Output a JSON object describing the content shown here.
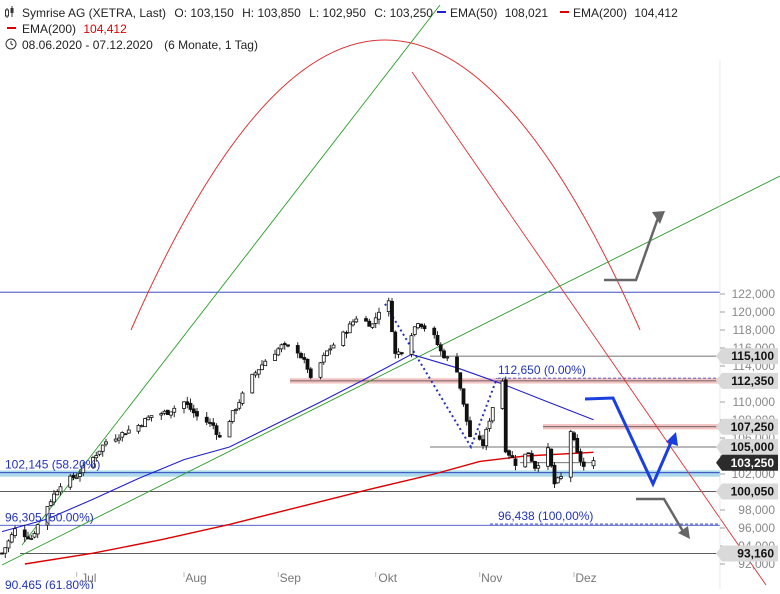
{
  "header": {
    "line1": {
      "symbol_icon": "candlestick-icon",
      "title": "Symrise AG (XETRA, Last)",
      "open": "O: 103,150",
      "high": "H: 103,850",
      "low": "L: 102,950",
      "close": "C: 103,250",
      "ema50_label": "EMA(50)",
      "ema50_value": "108,021",
      "ema200_label": "EMA(200)",
      "ema200_value": "104,412"
    },
    "line2": {
      "ema200_label": "EMA(200)",
      "ema200_value": "104,412"
    },
    "line3": {
      "clock_icon": "clock-icon",
      "range": "08.06.2020 - 07.12.2020",
      "period": "(6 Monate, 1 Tag)"
    }
  },
  "colors": {
    "ema50": "#2020cc",
    "ema200": "#dd0000",
    "trend_green": "#2a9d2a",
    "arc_red": "#dd3333",
    "fib_blue": "#2233bb",
    "support_band": "#9fd3e6",
    "resistance_band": "#f2b8b8",
    "candle": "#111111",
    "grid_line": "#444444",
    "arrow_blue": "#1a3fe0",
    "arrow_gray": "#666666"
  },
  "chart_data": {
    "type": "candlestick",
    "title": "Symrise AG (XETRA, Last)",
    "x_range": [
      "2020-06-08",
      "2020-12-07"
    ],
    "ylim": [
      92000,
      123000
    ],
    "y_ticks": [
      "92,000",
      "94,000",
      "96,000",
      "98,000",
      "100,000",
      "102,000",
      "104,000",
      "106,000",
      "108,000",
      "110,000",
      "112,000",
      "114,000",
      "116,000",
      "118,000",
      "120,000",
      "122,000"
    ],
    "x_ticks": [
      "Jul",
      "Aug",
      "Sep",
      "Okt",
      "Nov",
      "Dez"
    ],
    "last": {
      "open": 103150,
      "high": 103850,
      "low": 102950,
      "close": 103250
    },
    "ema50_last": 108021,
    "ema200_last": 104412,
    "price_path": [
      [
        "2020-06-08",
        93200
      ],
      [
        "2020-06-12",
        95800
      ],
      [
        "2020-06-17",
        94900
      ],
      [
        "2020-06-22",
        98500
      ],
      [
        "2020-06-26",
        100900
      ],
      [
        "2020-07-01",
        101800
      ],
      [
        "2020-07-06",
        103800
      ],
      [
        "2020-07-10",
        105600
      ],
      [
        "2020-07-15",
        106500
      ],
      [
        "2020-07-20",
        107400
      ],
      [
        "2020-07-24",
        108500
      ],
      [
        "2020-07-29",
        108900
      ],
      [
        "2020-08-03",
        110000
      ],
      [
        "2020-08-07",
        108400
      ],
      [
        "2020-08-12",
        107400
      ],
      [
        "2020-08-14",
        106000
      ],
      [
        "2020-08-19",
        109400
      ],
      [
        "2020-08-24",
        112800
      ],
      [
        "2020-08-28",
        114600
      ],
      [
        "2020-09-02",
        116200
      ],
      [
        "2020-09-07",
        115700
      ],
      [
        "2020-09-10",
        113800
      ],
      [
        "2020-09-11",
        112400
      ],
      [
        "2020-09-16",
        115600
      ],
      [
        "2020-09-21",
        117500
      ],
      [
        "2020-09-25",
        119400
      ],
      [
        "2020-09-30",
        118600
      ],
      [
        "2020-10-02",
        120200
      ],
      [
        "2020-10-05",
        121000
      ],
      [
        "2020-10-07",
        115300
      ],
      [
        "2020-10-09",
        115700
      ],
      [
        "2020-10-14",
        119000
      ],
      [
        "2020-10-19",
        117200
      ],
      [
        "2020-10-21",
        115600
      ],
      [
        "2020-10-26",
        113600
      ],
      [
        "2020-10-28",
        109600
      ],
      [
        "2020-10-30",
        106200
      ],
      [
        "2020-11-03",
        105300
      ],
      [
        "2020-11-06",
        109500
      ],
      [
        "2020-11-09",
        112400
      ],
      [
        "2020-11-10",
        104800
      ],
      [
        "2020-11-13",
        103200
      ],
      [
        "2020-11-17",
        104400
      ],
      [
        "2020-11-19",
        102800
      ],
      [
        "2020-11-23",
        104600
      ],
      [
        "2020-11-25",
        100900
      ],
      [
        "2020-11-27",
        101600
      ],
      [
        "2020-11-30",
        106800
      ],
      [
        "2020-12-02",
        104200
      ],
      [
        "2020-12-04",
        102800
      ],
      [
        "2020-12-07",
        103250
      ]
    ],
    "ema50_path": [
      [
        "2020-06-08",
        95600
      ],
      [
        "2020-06-22",
        97000
      ],
      [
        "2020-07-06",
        99200
      ],
      [
        "2020-07-20",
        101500
      ],
      [
        "2020-08-03",
        103600
      ],
      [
        "2020-08-17",
        105000
      ],
      [
        "2020-08-31",
        107500
      ],
      [
        "2020-09-14",
        110000
      ],
      [
        "2020-09-28",
        112600
      ],
      [
        "2020-10-12",
        115300
      ],
      [
        "2020-10-26",
        113800
      ],
      [
        "2020-11-09",
        112000
      ],
      [
        "2020-11-23",
        110000
      ],
      [
        "2020-12-07",
        108021
      ]
    ],
    "ema200_path": [
      [
        "2020-06-15",
        92000
      ],
      [
        "2020-07-06",
        93200
      ],
      [
        "2020-07-27",
        94700
      ],
      [
        "2020-08-17",
        96400
      ],
      [
        "2020-09-07",
        98300
      ],
      [
        "2020-09-28",
        100200
      ],
      [
        "2020-10-19",
        102000
      ],
      [
        "2020-11-02",
        103400
      ],
      [
        "2020-11-16",
        104000
      ],
      [
        "2020-12-07",
        104412
      ]
    ],
    "horizontal_levels": [
      {
        "value": 122200,
        "label": ""
      },
      {
        "value": 115100,
        "label": "115,100"
      },
      {
        "value": 112350,
        "label": "112,350"
      },
      {
        "value": 107250,
        "label": "107,250"
      },
      {
        "value": 105000,
        "label": "105,000"
      },
      {
        "value": 103250,
        "label": "103,250"
      },
      {
        "value": 100050,
        "label": "100,050"
      },
      {
        "value": 93160,
        "label": "93,160"
      }
    ],
    "fibonacci": [
      {
        "value": 112650,
        "label": "112,650 (0.00%)"
      },
      {
        "value": 102145,
        "label": "102,145 (58.20%)"
      },
      {
        "value": 96438,
        "label": "96,438 (100,00%)"
      },
      {
        "value": 96305,
        "label": "96,305 (50.00%)"
      },
      {
        "value": 90465,
        "label": "90,465 (61.80%)"
      }
    ]
  }
}
